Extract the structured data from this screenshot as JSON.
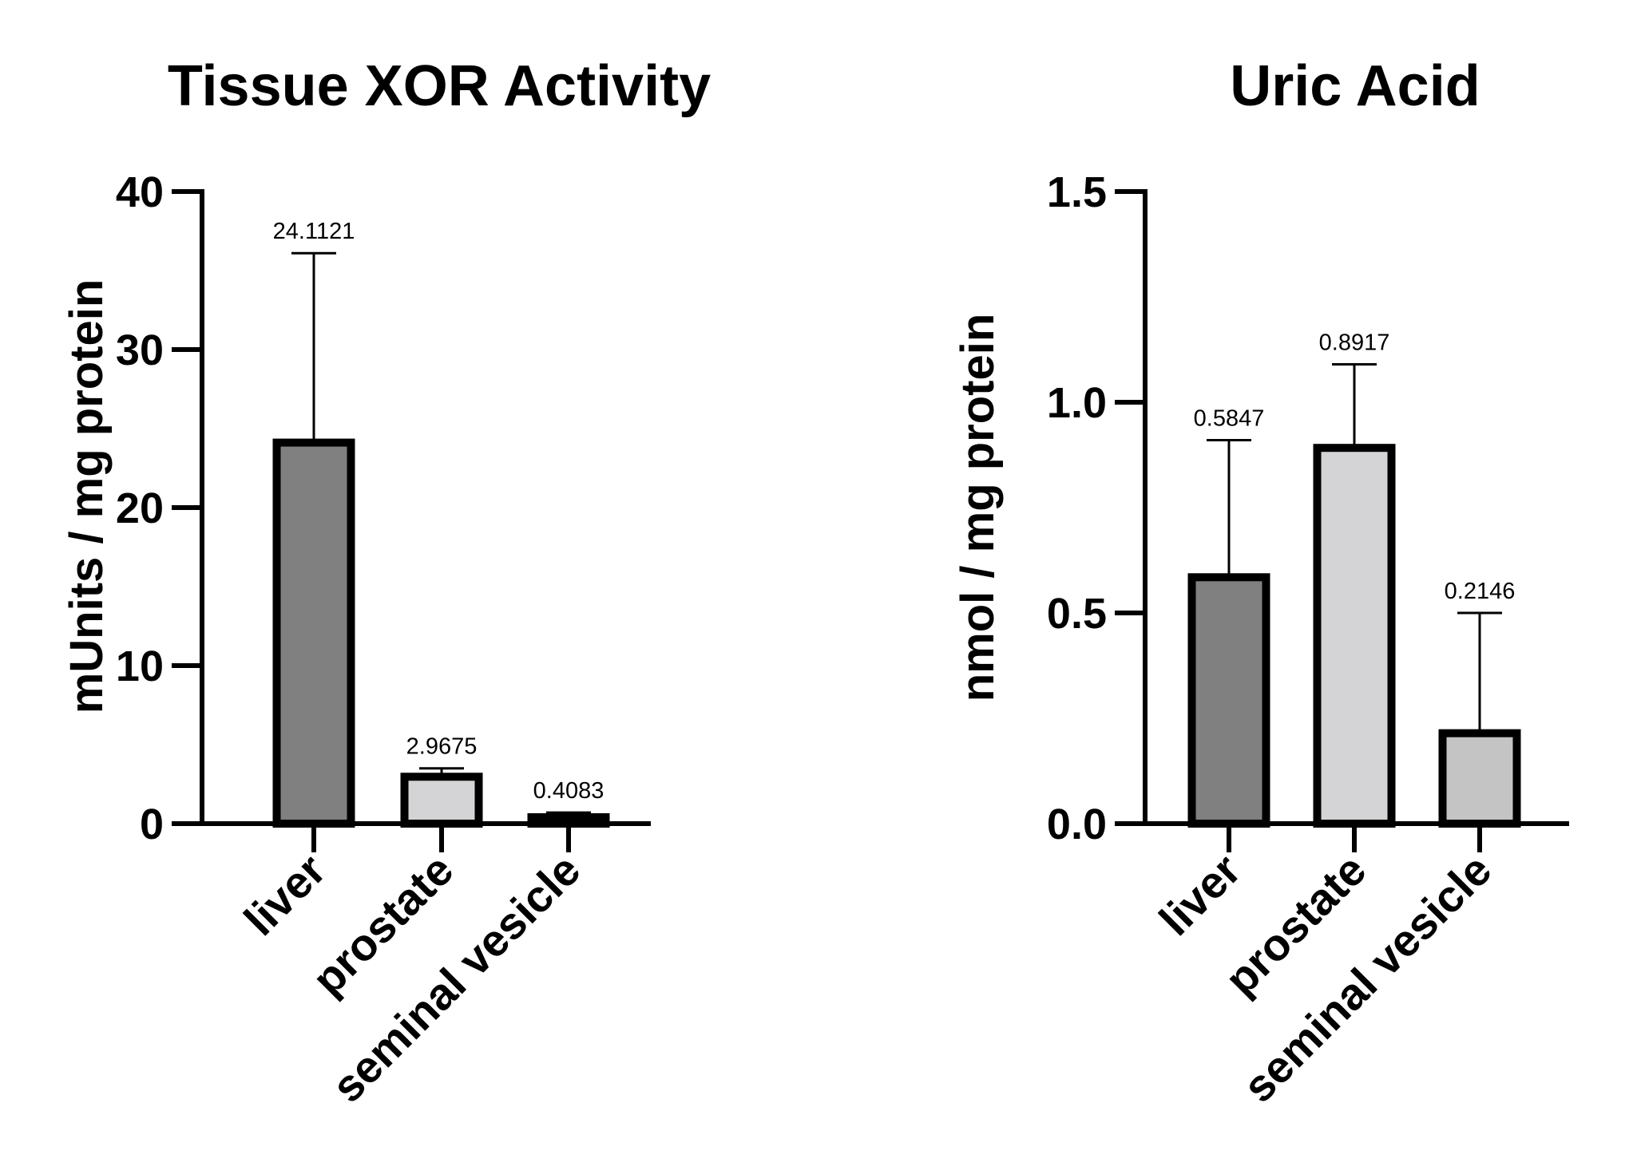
{
  "chart_data": [
    {
      "type": "bar",
      "title": "Tissue XOR Activity",
      "xlabel": "",
      "ylabel": "mUnits / mg protein",
      "ylim": [
        0,
        40
      ],
      "yticks": [
        "0",
        "10",
        "20",
        "30",
        "40"
      ],
      "categories": [
        "liver",
        "prostate",
        "seminal vesicle"
      ],
      "values": [
        24.1121,
        2.9675,
        0.4083
      ],
      "error_upper": [
        36.1,
        3.5,
        0.7
      ],
      "data_labels": [
        "24.1121",
        "2.9675",
        "0.4083"
      ],
      "bar_colors": [
        "#808080",
        "#d4d4d6",
        "#c4c4c4"
      ],
      "grid": false,
      "legend": "none"
    },
    {
      "type": "bar",
      "title": "Uric Acid",
      "xlabel": "",
      "ylabel": "nmol / mg protein",
      "ylim": [
        0,
        1.5
      ],
      "yticks": [
        "0.0",
        "0.5",
        "1.0",
        "1.5"
      ],
      "categories": [
        "liver",
        "prostate",
        "seminal vesicle"
      ],
      "values": [
        0.5847,
        0.8917,
        0.2146
      ],
      "error_upper": [
        0.91,
        1.09,
        0.5
      ],
      "data_labels": [
        "0.5847",
        "0.8917",
        "0.2146"
      ],
      "bar_colors": [
        "#808080",
        "#d4d4d6",
        "#c4c4c4"
      ],
      "grid": false,
      "legend": "none"
    }
  ]
}
